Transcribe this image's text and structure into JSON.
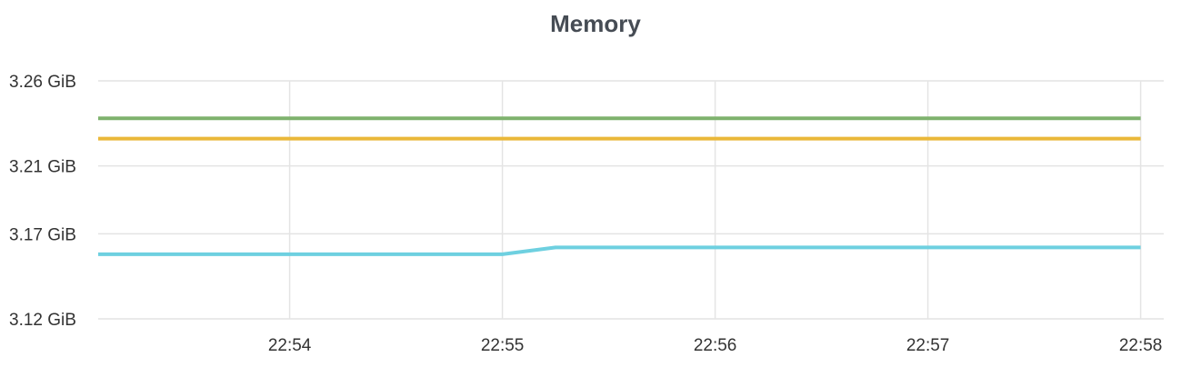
{
  "panel": {
    "title": "Memory"
  },
  "chart_data": {
    "type": "line",
    "title": "Memory",
    "xlabel": "",
    "ylabel": "",
    "x_ticks": [
      "22:54",
      "22:55",
      "22:56",
      "22:57",
      "22:58"
    ],
    "x_range": [
      "22:53:06",
      "22:58:00"
    ],
    "y_ticks": [
      "3.12 GiB",
      "3.17 GiB",
      "3.21 GiB",
      "3.26 GiB"
    ],
    "y_unit": "GiB",
    "ylim": [
      3.12,
      3.26
    ],
    "grid": true,
    "legend": "none",
    "series": [
      {
        "color": "#7eb26d",
        "x": [
          "22:53:06",
          "22:58:00"
        ],
        "values": [
          3.238,
          3.238
        ]
      },
      {
        "color": "#eab839",
        "x": [
          "22:53:06",
          "22:58:00"
        ],
        "values": [
          3.226,
          3.226
        ]
      },
      {
        "color": "#6ed0e0",
        "x": [
          "22:53:06",
          "22:55:00",
          "22:55:15",
          "22:58:00"
        ],
        "values": [
          3.158,
          3.158,
          3.162,
          3.162
        ]
      }
    ]
  }
}
